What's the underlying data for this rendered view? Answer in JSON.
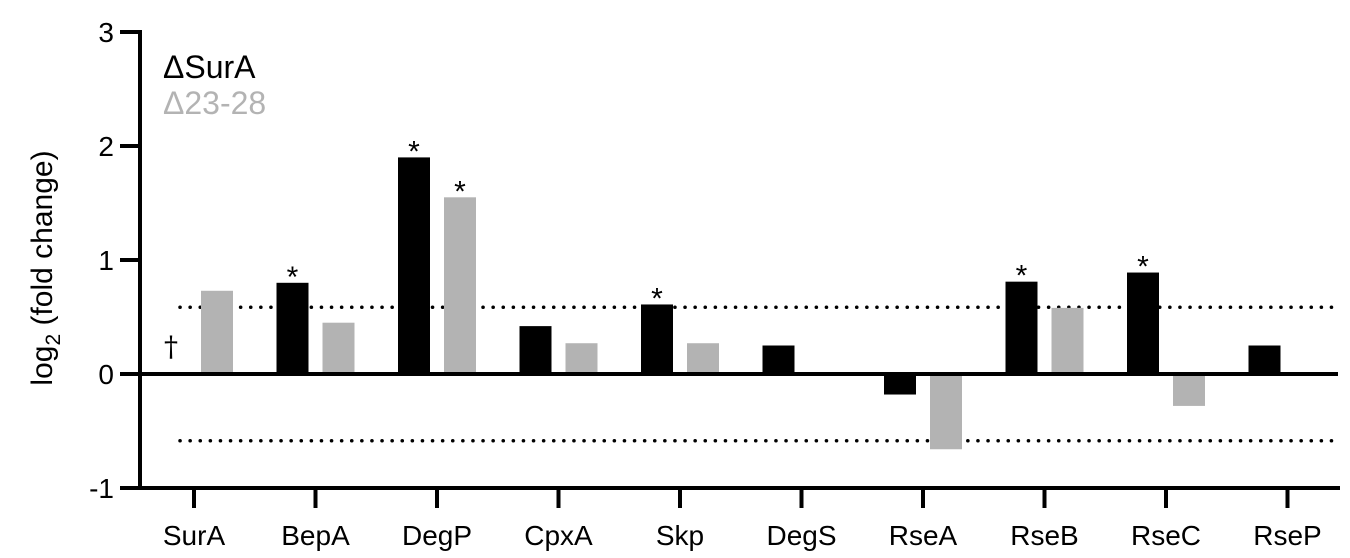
{
  "chart_data": {
    "type": "bar",
    "title": "",
    "xlabel": "",
    "ylabel": "log",
    "ylabel_subscript": "2",
    "ylabel_suffix": " (fold change)",
    "ylim": [
      -1,
      3
    ],
    "yticks": [
      "-1",
      "0",
      "1",
      "2",
      "3"
    ],
    "categories": [
      "SurA",
      "BepA",
      "DegP",
      "CpxA",
      "Skp",
      "DegS",
      "RseA",
      "RseB",
      "RseC",
      "RseP"
    ],
    "series": [
      {
        "name": "ΔSurA",
        "color": "#000000",
        "values": [
          null,
          0.8,
          1.9,
          0.42,
          0.61,
          0.25,
          -0.18,
          0.81,
          0.89,
          0.25
        ],
        "significance": [
          "",
          "*",
          "*",
          "",
          "*",
          "",
          "",
          "*",
          "*",
          ""
        ]
      },
      {
        "name": "Δ23-28",
        "color": "#b3b3b3",
        "values": [
          0.73,
          0.45,
          1.55,
          0.27,
          0.27,
          0.0,
          -0.66,
          0.58,
          -0.28,
          0.0
        ],
        "significance": [
          "",
          "",
          "*",
          "",
          "",
          "",
          "",
          "",
          "",
          ""
        ]
      }
    ],
    "reference_lines": [
      0.585,
      -0.585
    ],
    "annotations": [
      {
        "category": "SurA",
        "series": "ΔSurA",
        "text": "†"
      }
    ],
    "legend_position": "top-left",
    "grid": false
  }
}
